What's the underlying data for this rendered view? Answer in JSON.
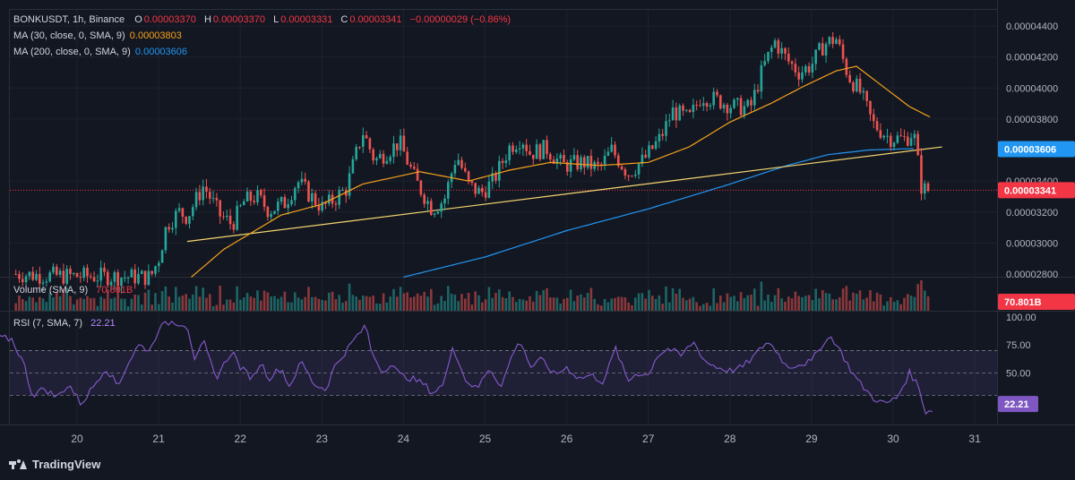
{
  "header": {
    "symbol": "BONKUSDT, 1h, Binance",
    "open_label": "O",
    "open": "0.00003370",
    "high_label": "H",
    "high": "0.00003370",
    "low_label": "L",
    "low": "0.00003331",
    "close_label": "C",
    "close": "0.00003341",
    "change": "−0.00000029 (−0.86%)"
  },
  "indicators": {
    "ma30_label": "MA (30, close, 0, SMA, 9)",
    "ma30_value": "0.00003803",
    "ma200_label": "MA (200, close, 0, SMA, 9)",
    "ma200_value": "0.00003606",
    "volume_label": "Volume (SMA, 9)",
    "volume_value": "70.801B",
    "rsi_label": "RSI (7, SMA, 7)",
    "rsi_value": "22.21"
  },
  "colors": {
    "background": "#131722",
    "up": "#26a69a",
    "down": "#ef5350",
    "ma30": "#f7a21b",
    "ma200": "#2196f3",
    "trendline": "#f5d76e",
    "rsi": "#7e57c2"
  },
  "brand": {
    "logo_text": "TradingView"
  },
  "chart_data": [
    {
      "type": "candlestick",
      "title": "BONKUSDT, 1h, Binance",
      "y_axis": {
        "ticks": [
          "0.00004400",
          "0.00004200",
          "0.00004000",
          "0.00003800",
          "0.00003400",
          "0.00003200",
          "0.00003000",
          "0.00002800"
        ],
        "ylim": [
          2.78e-05,
          4.46e-05
        ],
        "badges": [
          {
            "label": "0.00003606",
            "value": 3.606e-05,
            "color": "#2196f3"
          },
          {
            "label": "0.00003341",
            "value": 3.341e-05,
            "color": "#f23645"
          }
        ]
      },
      "x_axis": {
        "ticks": [
          "20",
          "21",
          "22",
          "23",
          "24",
          "25",
          "26",
          "27",
          "28",
          "29",
          "30",
          "31"
        ]
      },
      "price_anchors": [
        [
          19.25,
          2.8e-05
        ],
        [
          19.6,
          2.79e-05
        ],
        [
          20.9,
          2.78e-05
        ],
        [
          21.0,
          2.9e-05
        ],
        [
          21.1,
          3.12e-05
        ],
        [
          21.25,
          3.2e-05
        ],
        [
          21.35,
          3.17e-05
        ],
        [
          21.55,
          3.37e-05
        ],
        [
          21.75,
          3.18e-05
        ],
        [
          21.9,
          3.12e-05
        ],
        [
          22.05,
          3.27e-05
        ],
        [
          22.2,
          3.3e-05
        ],
        [
          22.35,
          3.21e-05
        ],
        [
          22.55,
          3.26e-05
        ],
        [
          22.7,
          3.4e-05
        ],
        [
          22.85,
          3.31e-05
        ],
        [
          23.0,
          3.23e-05
        ],
        [
          23.1,
          3.26e-05
        ],
        [
          23.3,
          3.35e-05
        ],
        [
          23.5,
          3.72e-05
        ],
        [
          23.65,
          3.53e-05
        ],
        [
          23.75,
          3.57e-05
        ],
        [
          23.95,
          3.65e-05
        ],
        [
          24.15,
          3.4e-05
        ],
        [
          24.35,
          3.22e-05
        ],
        [
          24.5,
          3.28e-05
        ],
        [
          24.65,
          3.57e-05
        ],
        [
          24.8,
          3.37e-05
        ],
        [
          24.95,
          3.32e-05
        ],
        [
          25.1,
          3.4e-05
        ],
        [
          25.3,
          3.62e-05
        ],
        [
          25.45,
          3.68e-05
        ],
        [
          25.55,
          3.58e-05
        ],
        [
          25.75,
          3.61e-05
        ],
        [
          25.95,
          3.5e-05
        ],
        [
          26.2,
          3.52e-05
        ],
        [
          26.4,
          3.48e-05
        ],
        [
          26.55,
          3.6e-05
        ],
        [
          26.75,
          3.45e-05
        ],
        [
          26.95,
          3.54e-05
        ],
        [
          27.15,
          3.68e-05
        ],
        [
          27.3,
          3.85e-05
        ],
        [
          27.5,
          3.8e-05
        ],
        [
          27.65,
          3.95e-05
        ],
        [
          27.85,
          3.92e-05
        ],
        [
          28.05,
          3.88e-05
        ],
        [
          28.25,
          3.87e-05
        ],
        [
          28.4,
          4.12e-05
        ],
        [
          28.55,
          4.3e-05
        ],
        [
          28.7,
          4.18e-05
        ],
        [
          28.85,
          4.1e-05
        ],
        [
          29.0,
          4.15e-05
        ],
        [
          29.15,
          4.28e-05
        ],
        [
          29.3,
          4.32e-05
        ],
        [
          29.45,
          4.08e-05
        ],
        [
          29.6,
          3.97e-05
        ],
        [
          29.75,
          3.77e-05
        ],
        [
          29.95,
          3.68e-05
        ],
        [
          30.15,
          3.67e-05
        ],
        [
          30.25,
          3.72e-05
        ],
        [
          30.35,
          3.35e-05
        ],
        [
          30.45,
          3.34e-05
        ]
      ],
      "ma30_anchors": [
        [
          21.4,
          2.78e-05
        ],
        [
          21.8,
          2.96e-05
        ],
        [
          22.5,
          3.18e-05
        ],
        [
          23.0,
          3.25e-05
        ],
        [
          23.5,
          3.38e-05
        ],
        [
          24.2,
          3.46e-05
        ],
        [
          24.8,
          3.4e-05
        ],
        [
          25.3,
          3.47e-05
        ],
        [
          25.8,
          3.52e-05
        ],
        [
          26.4,
          3.5e-05
        ],
        [
          27.0,
          3.52e-05
        ],
        [
          27.5,
          3.62e-05
        ],
        [
          28.0,
          3.78e-05
        ],
        [
          28.5,
          3.9e-05
        ],
        [
          28.9,
          4.01e-05
        ],
        [
          29.3,
          4.11e-05
        ],
        [
          29.55,
          4.14e-05
        ],
        [
          29.9,
          4e-05
        ],
        [
          30.2,
          3.88e-05
        ],
        [
          30.5,
          3.8e-05
        ]
      ],
      "ma200_anchors": [
        [
          24.0,
          2.78e-05
        ],
        [
          25.0,
          2.91e-05
        ],
        [
          26.0,
          3.08e-05
        ],
        [
          27.0,
          3.22e-05
        ],
        [
          28.0,
          3.38e-05
        ],
        [
          28.7,
          3.5e-05
        ],
        [
          29.2,
          3.57e-05
        ],
        [
          29.7,
          3.6e-05
        ],
        [
          30.3,
          3.61e-05
        ]
      ],
      "trendline": {
        "from": [
          21.35,
          3.01e-05
        ],
        "to": [
          30.6,
          3.62e-05
        ]
      }
    },
    {
      "type": "bar",
      "title": "Volume (SMA, 9)",
      "note": "volume histogram",
      "badge": {
        "label": "70.801B",
        "color": "#f23645"
      }
    },
    {
      "type": "line",
      "title": "RSI (7, SMA, 7)",
      "y_axis": {
        "ticks": [
          "100.00",
          "75.00",
          "50.00"
        ],
        "ylim": [
          0,
          100
        ]
      },
      "band": [
        30,
        70
      ],
      "badge": {
        "label": "22.21",
        "value": 22.21,
        "color": "#7e57c2"
      },
      "rsi_anchors": [
        [
          19.0,
          82
        ],
        [
          19.2,
          80
        ],
        [
          19.35,
          58
        ],
        [
          19.45,
          30
        ],
        [
          19.6,
          36
        ],
        [
          19.75,
          28
        ],
        [
          19.9,
          40
        ],
        [
          20.05,
          22
        ],
        [
          20.2,
          38
        ],
        [
          20.35,
          55
        ],
        [
          20.5,
          38
        ],
        [
          20.6,
          55
        ],
        [
          20.75,
          75
        ],
        [
          20.9,
          70
        ],
        [
          21.0,
          90
        ],
        [
          21.15,
          96
        ],
        [
          21.35,
          93
        ],
        [
          21.45,
          60
        ],
        [
          21.55,
          78
        ],
        [
          21.7,
          45
        ],
        [
          21.9,
          70
        ],
        [
          22.0,
          55
        ],
        [
          22.15,
          45
        ],
        [
          22.25,
          60
        ],
        [
          22.35,
          45
        ],
        [
          22.5,
          55
        ],
        [
          22.6,
          38
        ],
        [
          22.75,
          60
        ],
        [
          22.9,
          40
        ],
        [
          23.05,
          35
        ],
        [
          23.15,
          55
        ],
        [
          23.3,
          70
        ],
        [
          23.45,
          85
        ],
        [
          23.55,
          92
        ],
        [
          23.6,
          70
        ],
        [
          23.75,
          50
        ],
        [
          23.85,
          60
        ],
        [
          23.95,
          48
        ],
        [
          24.1,
          45
        ],
        [
          24.25,
          40
        ],
        [
          24.35,
          32
        ],
        [
          24.5,
          40
        ],
        [
          24.6,
          75
        ],
        [
          24.75,
          45
        ],
        [
          24.9,
          35
        ],
        [
          25.05,
          55
        ],
        [
          25.2,
          38
        ],
        [
          25.35,
          70
        ],
        [
          25.45,
          78
        ],
        [
          25.55,
          55
        ],
        [
          25.7,
          62
        ],
        [
          25.85,
          48
        ],
        [
          26.0,
          55
        ],
        [
          26.15,
          45
        ],
        [
          26.3,
          48
        ],
        [
          26.45,
          42
        ],
        [
          26.6,
          72
        ],
        [
          26.75,
          42
        ],
        [
          26.85,
          50
        ],
        [
          27.0,
          48
        ],
        [
          27.1,
          65
        ],
        [
          27.25,
          72
        ],
        [
          27.4,
          65
        ],
        [
          27.55,
          78
        ],
        [
          27.7,
          60
        ],
        [
          27.85,
          55
        ],
        [
          28.0,
          52
        ],
        [
          28.15,
          55
        ],
        [
          28.3,
          65
        ],
        [
          28.45,
          78
        ],
        [
          28.55,
          72
        ],
        [
          28.7,
          55
        ],
        [
          28.85,
          58
        ],
        [
          29.0,
          60
        ],
        [
          29.15,
          78
        ],
        [
          29.25,
          82
        ],
        [
          29.35,
          70
        ],
        [
          29.5,
          50
        ],
        [
          29.6,
          40
        ],
        [
          29.75,
          28
        ],
        [
          29.9,
          22
        ],
        [
          30.05,
          28
        ],
        [
          30.2,
          50
        ],
        [
          30.3,
          40
        ],
        [
          30.4,
          15
        ],
        [
          30.5,
          18
        ]
      ]
    }
  ]
}
